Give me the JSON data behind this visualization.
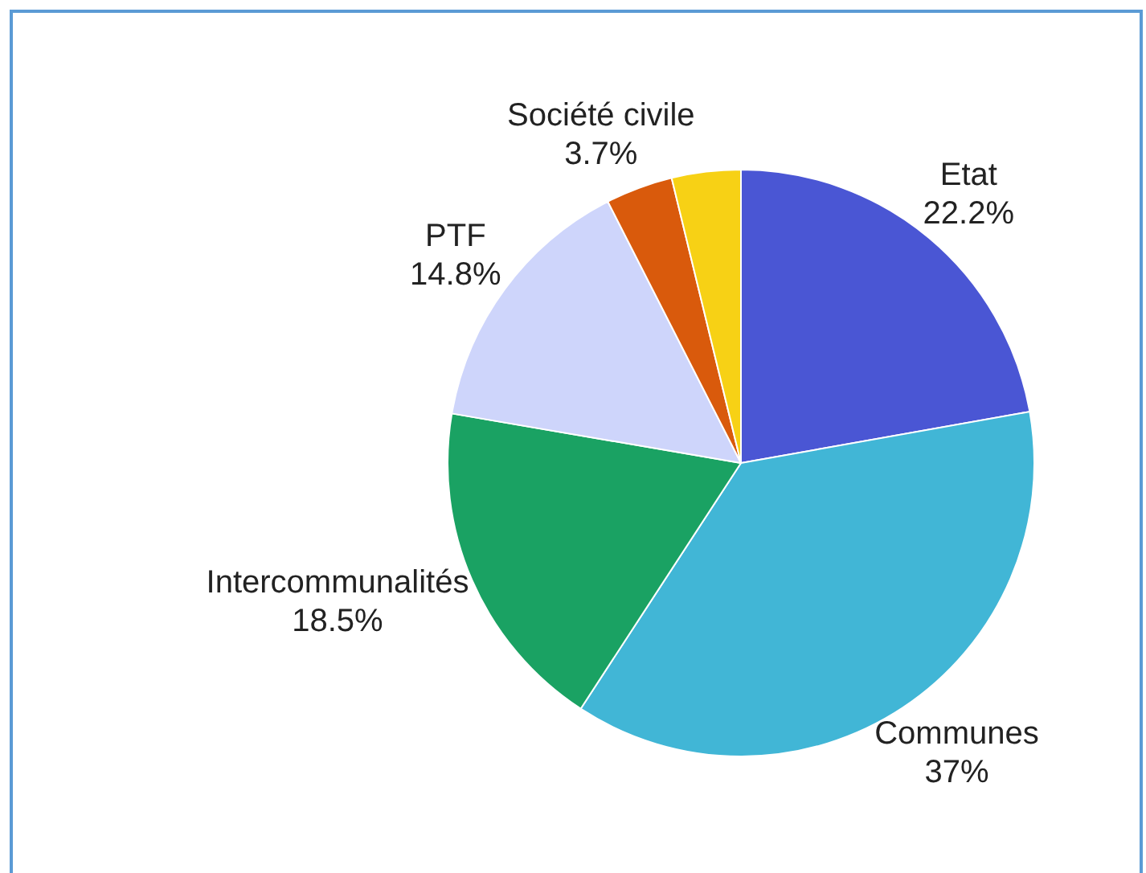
{
  "chart_data": {
    "type": "pie",
    "categories": [
      "Etat",
      "Communes",
      "Intercommunalités",
      "PTF",
      "Société civile",
      null
    ],
    "values": [
      22.2,
      37,
      18.5,
      14.8,
      3.7,
      3.8
    ],
    "colors": [
      "#4a56d4",
      "#41b6d6",
      "#1aa263",
      "#ced5fb",
      "#d95a0c",
      "#f7d115"
    ],
    "value_labels": [
      "22.2%",
      "37%",
      "18.5%",
      "14.8%",
      "3.7%",
      null
    ],
    "legend": false
  }
}
